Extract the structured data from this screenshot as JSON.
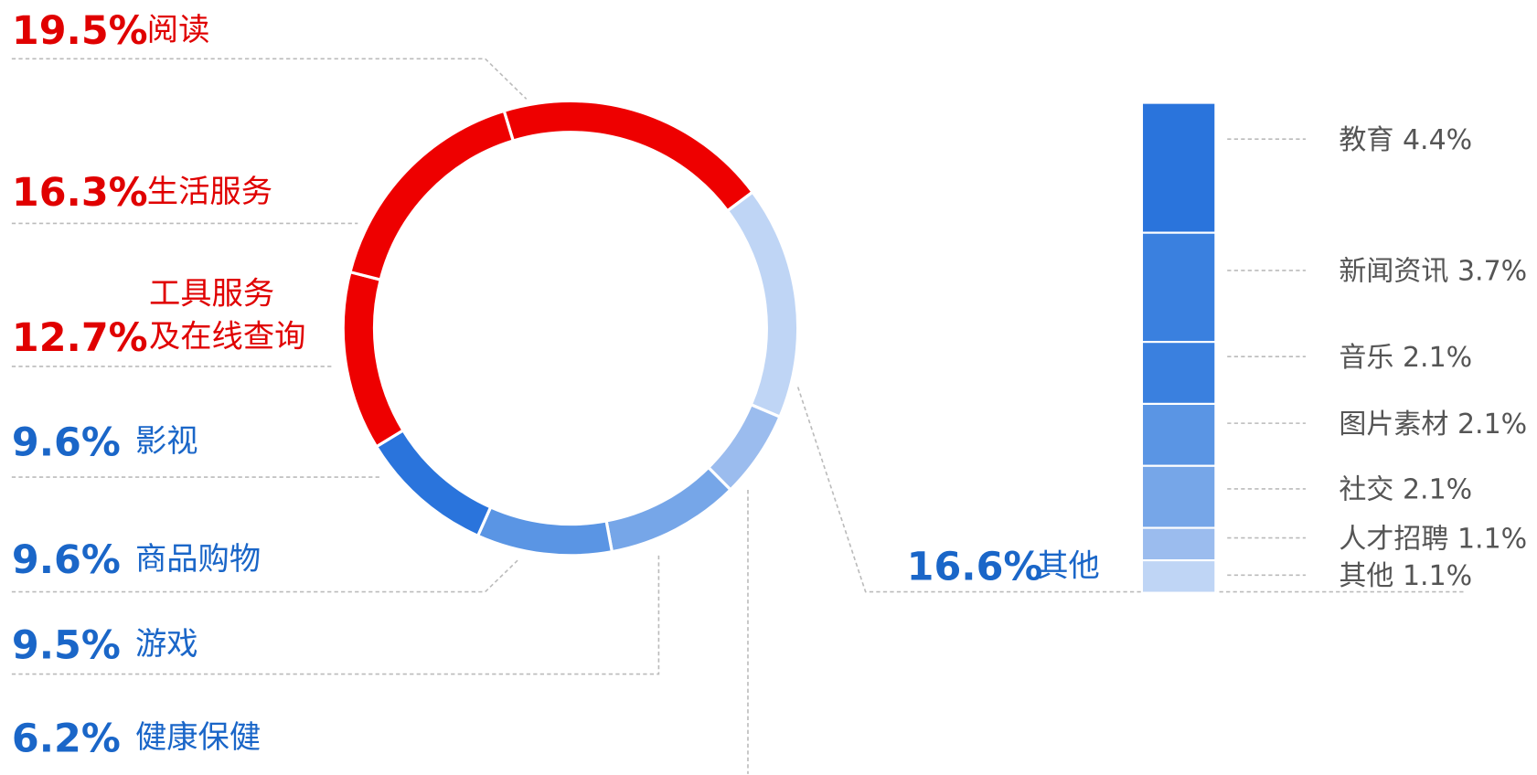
{
  "chart_data": {
    "type": "pie",
    "categories": [
      "阅读",
      "其他",
      "健康保健",
      "游戏",
      "商品购物",
      "影视",
      "工具服务\n及在线查询",
      "生活服务"
    ],
    "values": [
      19.5,
      16.6,
      6.2,
      9.5,
      9.6,
      9.6,
      12.7,
      16.3
    ],
    "value_labels": [
      "19.5%",
      "16.6%",
      "6.2%",
      "9.5%",
      "9.6%",
      "9.6%",
      "12.7%",
      "16.3%"
    ],
    "colors": [
      "#ee0000",
      "#bfd5f5",
      "#9bbcee",
      "#76a6e8",
      "#5a95e4",
      "#2a74dc",
      "#ee0000",
      "#ee0000"
    ],
    "breakdown": {
      "categories": [
        "教育",
        "新闻资讯",
        "音乐",
        "图片素材",
        "社交",
        "人才招聘",
        "其他"
      ],
      "values": [
        4.4,
        3.7,
        2.1,
        2.1,
        2.1,
        1.1,
        1.1
      ],
      "value_labels": [
        "4.4%",
        "3.7%",
        "2.1%",
        "2.1%",
        "2.1%",
        "1.1%",
        "1.1%"
      ],
      "colors": [
        "#2a74dc",
        "#3a80df",
        "#3a80df",
        "#5a95e4",
        "#76a6e8",
        "#9bbcee",
        "#bfd5f5"
      ]
    }
  }
}
